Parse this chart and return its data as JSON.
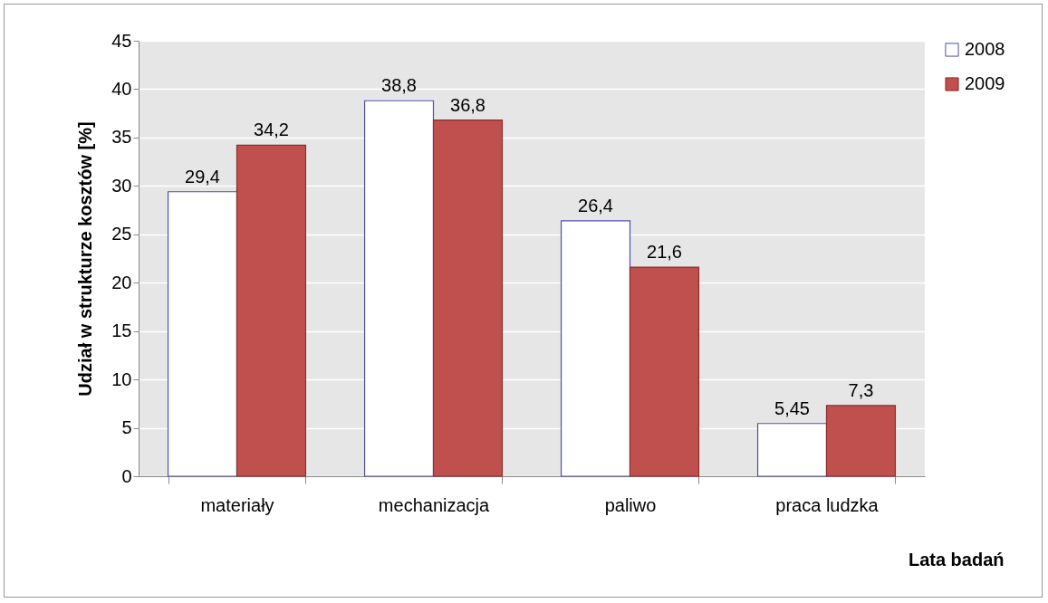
{
  "chart_data": {
    "type": "bar",
    "xlabel": "Lata badań",
    "ylabel": "Udział w strukturze kosztów [%]",
    "categories": [
      "materiały",
      "mechanizacja",
      "paliwo",
      "praca ludzka"
    ],
    "series": [
      {
        "name": "2008",
        "color": "#ffffff",
        "values": [
          29.4,
          38.8,
          26.4,
          5.45
        ],
        "value_labels": [
          "29,4",
          "38,8",
          "26,4",
          "5,45"
        ]
      },
      {
        "name": "2009",
        "color": "#c0504d",
        "values": [
          34.2,
          36.8,
          21.6,
          7.3
        ],
        "value_labels": [
          "34,2",
          "36,8",
          "21,6",
          "7,3"
        ]
      }
    ],
    "ylim": [
      0,
      45
    ],
    "yticks": [
      0,
      5,
      10,
      15,
      20,
      25,
      30,
      35,
      40,
      45
    ],
    "grid": "y",
    "legend": "right"
  }
}
